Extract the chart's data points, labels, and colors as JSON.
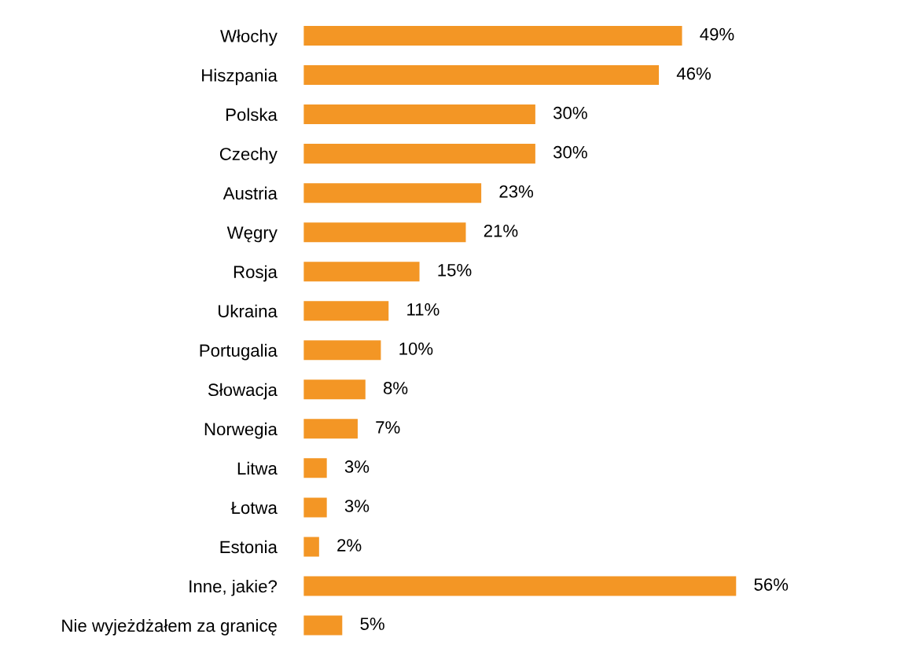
{
  "chart_data": {
    "type": "bar",
    "orientation": "horizontal",
    "tick_labels": "y",
    "grid": false,
    "legend": false,
    "categories": [
      "Włochy",
      "Hiszpania",
      "Polska",
      "Czechy",
      "Austria",
      "Węgry",
      "Rosja",
      "Ukraina",
      "Portugalia",
      "Słowacja",
      "Norwegia",
      "Litwa",
      "Łotwa",
      "Estonia",
      "Inne, jakie?",
      "Nie wyjeżdżałem za granicę"
    ],
    "values": [
      49,
      46,
      30,
      30,
      23,
      21,
      15,
      11,
      10,
      8,
      7,
      3,
      3,
      2,
      56,
      5
    ],
    "value_labels": [
      "49%",
      "46%",
      "30%",
      "30%",
      "23%",
      "21%",
      "15%",
      "11%",
      "10%",
      "8%",
      "7%",
      "3%",
      "3%",
      "2%",
      "56%",
      "5%"
    ],
    "color": "#f39625"
  }
}
